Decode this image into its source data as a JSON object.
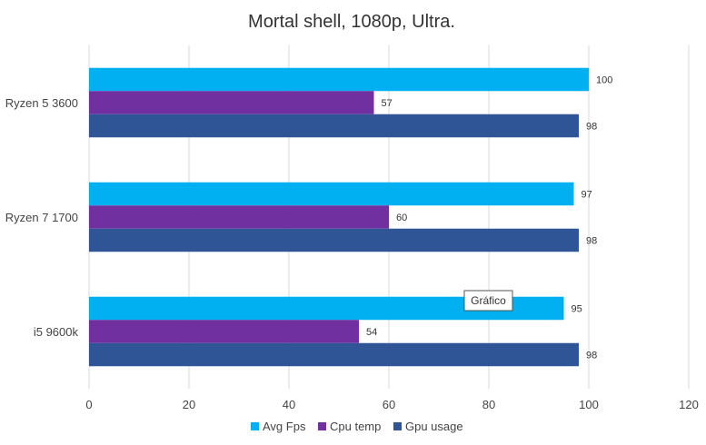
{
  "chart_data": {
    "type": "bar",
    "orientation": "horizontal",
    "title": "Mortal shell, 1080p, Ultra.",
    "categories": [
      "Ryzen 5 3600",
      "Ryzen 7 1700",
      "i5 9600k"
    ],
    "series": [
      {
        "name": "Avg Fps",
        "color": "#00B0F0",
        "values": [
          100,
          97,
          95
        ]
      },
      {
        "name": "Cpu temp",
        "color": "#7030A0",
        "values": [
          57,
          60,
          54
        ]
      },
      {
        "name": "Gpu usage",
        "color": "#2F5597",
        "values": [
          98,
          98,
          98
        ]
      }
    ],
    "xlim": [
      0,
      120
    ],
    "xticks": [
      0,
      20,
      40,
      60,
      80,
      100,
      120
    ],
    "grid": true,
    "legend": "bottom",
    "data_labels": true
  },
  "tooltip": {
    "text": "Gráfico"
  }
}
